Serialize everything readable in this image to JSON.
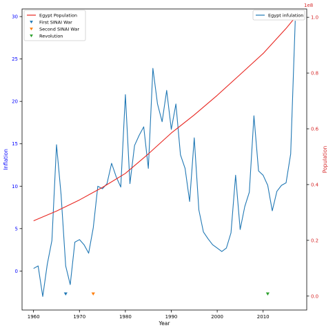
{
  "chart_data": {
    "type": "line",
    "title": "",
    "xlabel": "Year",
    "ylabel_left": "Inflation",
    "ylabel_right": "Population",
    "right_axis_multiplier": "1e8",
    "xlim": [
      1957.5,
      2019.5
    ],
    "ylim_left": [
      -4.6,
      30.9
    ],
    "ylim_right": [
      -0.05,
      1.03
    ],
    "x_ticks": [
      1960,
      1970,
      1980,
      1990,
      2000,
      2010
    ],
    "y_left_ticks": [
      0,
      5,
      10,
      15,
      20,
      25,
      30
    ],
    "y_right_ticks": [
      0.0,
      0.2,
      0.4,
      0.6,
      0.8,
      1.0
    ],
    "grid": false,
    "colors": {
      "inflation": "#1f77b4",
      "population": "#e8251f",
      "first_war": "#1f77b4",
      "second_war": "#ff7f0e",
      "revolution": "#2ca02c",
      "left_axis_text": "#0000ff",
      "right_axis_text": "#d62728"
    },
    "legend_left": {
      "placement": "top-left",
      "entries": [
        {
          "key": "population",
          "label": "Egypt Population",
          "marker": "line"
        },
        {
          "key": "first_war",
          "label": "First SINAI War",
          "marker": "triangle"
        },
        {
          "key": "second_war",
          "label": "Second SINAI War",
          "marker": "triangle"
        },
        {
          "key": "revolution",
          "label": "Revolution",
          "marker": "triangle"
        }
      ]
    },
    "legend_right": {
      "placement": "top-right",
      "entries": [
        {
          "key": "inflation",
          "label": "Egypt infulation",
          "marker": "line"
        }
      ]
    },
    "series": [
      {
        "name": "Egypt infulation",
        "axis": "left",
        "x": [
          1960,
          1961,
          1962,
          1963,
          1964,
          1965,
          1966,
          1967,
          1968,
          1969,
          1970,
          1971,
          1972,
          1973,
          1974,
          1975,
          1976,
          1977,
          1978,
          1979,
          1980,
          1981,
          1982,
          1983,
          1984,
          1985,
          1986,
          1987,
          1988,
          1989,
          1990,
          1991,
          1992,
          1993,
          1994,
          1995,
          1996,
          1997,
          1998,
          1999,
          2000,
          2001,
          2002,
          2003,
          2004,
          2005,
          2006,
          2007,
          2008,
          2009,
          2010,
          2011,
          2012,
          2013,
          2014,
          2015,
          2016,
          2017
        ],
        "y": [
          0.3,
          0.6,
          -3.0,
          0.8,
          3.6,
          14.9,
          9.0,
          0.6,
          -1.6,
          3.4,
          3.7,
          3.1,
          2.1,
          5.1,
          10.0,
          9.7,
          10.3,
          12.7,
          11.1,
          9.9,
          20.8,
          10.3,
          14.8,
          16.0,
          17.0,
          12.1,
          23.9,
          19.7,
          17.6,
          21.3,
          16.7,
          19.7,
          13.7,
          12.1,
          8.2,
          15.7,
          7.2,
          4.6,
          3.8,
          3.1,
          2.7,
          2.3,
          2.7,
          4.5,
          11.3,
          4.9,
          7.6,
          9.3,
          18.3,
          11.8,
          11.3,
          10.1,
          7.1,
          9.4,
          10.1,
          10.4,
          13.8,
          29.5
        ]
      },
      {
        "name": "Egypt Population",
        "axis": "right",
        "x": [
          1960,
          1965,
          1970,
          1975,
          1980,
          1985,
          1990,
          1995,
          2000,
          2005,
          2010,
          2015,
          2017
        ],
        "y": [
          0.27,
          0.305,
          0.345,
          0.39,
          0.44,
          0.51,
          0.585,
          0.65,
          0.72,
          0.795,
          0.87,
          0.96,
          1.0
        ]
      }
    ],
    "events": [
      {
        "name": "First SINAI War",
        "key": "first_war",
        "x": 1967,
        "y_left": -2.7
      },
      {
        "name": "Second SINAI War",
        "key": "second_war",
        "x": 1973,
        "y_left": -2.7
      },
      {
        "name": "Revolution",
        "key": "revolution",
        "x": 2011,
        "y_left": -2.7
      }
    ]
  }
}
